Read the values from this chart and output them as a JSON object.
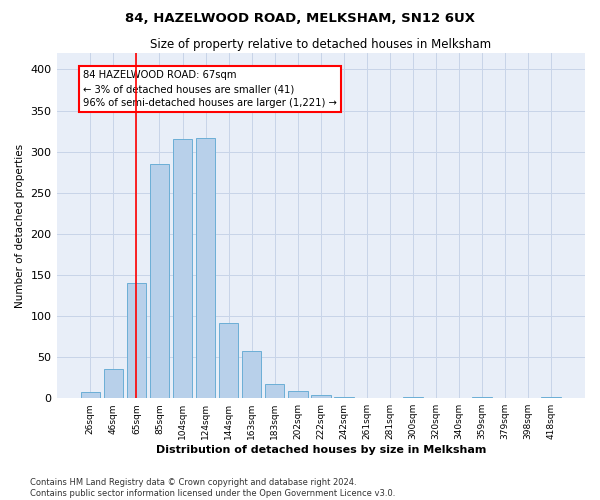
{
  "title": "84, HAZELWOOD ROAD, MELKSHAM, SN12 6UX",
  "subtitle": "Size of property relative to detached houses in Melksham",
  "xlabel": "Distribution of detached houses by size in Melksham",
  "ylabel": "Number of detached properties",
  "bar_labels": [
    "26sqm",
    "46sqm",
    "65sqm",
    "85sqm",
    "104sqm",
    "124sqm",
    "144sqm",
    "163sqm",
    "183sqm",
    "202sqm",
    "222sqm",
    "242sqm",
    "261sqm",
    "281sqm",
    "300sqm",
    "320sqm",
    "340sqm",
    "359sqm",
    "379sqm",
    "398sqm",
    "418sqm"
  ],
  "bar_values": [
    7,
    35,
    140,
    285,
    315,
    317,
    92,
    57,
    17,
    9,
    4,
    1,
    0,
    0,
    1,
    0,
    0,
    1,
    0,
    0,
    2
  ],
  "bar_color": "#b8d0ea",
  "bar_edge_color": "#6baed6",
  "grid_color": "#c8d4e8",
  "background_color": "#e8eef8",
  "vline_x": 2,
  "vline_color": "red",
  "ylim": [
    0,
    420
  ],
  "yticks": [
    0,
    50,
    100,
    150,
    200,
    250,
    300,
    350,
    400
  ],
  "annotation_text": "84 HAZELWOOD ROAD: 67sqm\n← 3% of detached houses are smaller (41)\n96% of semi-detached houses are larger (1,221) →",
  "annotation_box_color": "white",
  "annotation_box_edgecolor": "red",
  "footer_line1": "Contains HM Land Registry data © Crown copyright and database right 2024.",
  "footer_line2": "Contains public sector information licensed under the Open Government Licence v3.0."
}
